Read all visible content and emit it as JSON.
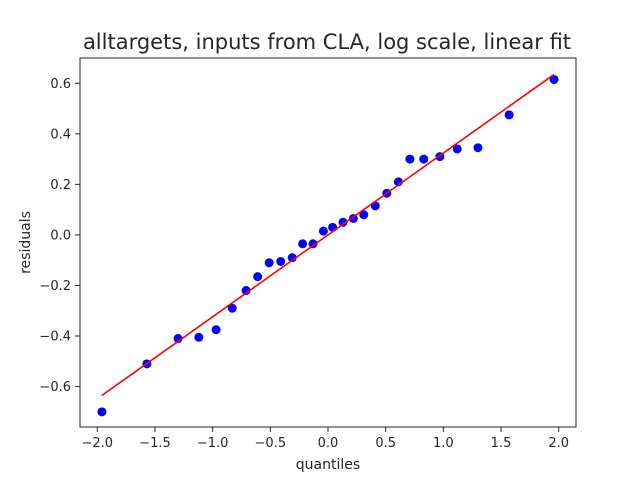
{
  "chart_data": {
    "type": "scatter",
    "title": "alltargets, inputs from CLA, log scale, linear fit",
    "xlabel": "quantiles",
    "ylabel": "residuals",
    "xlim": [
      -2.15,
      2.15
    ],
    "ylim": [
      -0.76,
      0.7
    ],
    "xticks": [
      -2.0,
      -1.5,
      -1.0,
      -0.5,
      0.0,
      0.5,
      1.0,
      1.5,
      2.0
    ],
    "xtick_labels": [
      "−2.0",
      "−1.5",
      "−1.0",
      "−0.5",
      "0.0",
      "0.5",
      "1.0",
      "1.5",
      "2.0"
    ],
    "yticks": [
      -0.6,
      -0.4,
      -0.2,
      0.0,
      0.2,
      0.4,
      0.6
    ],
    "ytick_labels": [
      "−0.6",
      "−0.4",
      "−0.2",
      "0.0",
      "0.2",
      "0.4",
      "0.6"
    ],
    "grid": false,
    "colors": {
      "points": "#0000ff",
      "fit_line": "#ff0000",
      "frame": "#262626"
    },
    "points": {
      "x": [
        -1.96,
        -1.57,
        -1.3,
        -1.12,
        -0.97,
        -0.83,
        -0.71,
        -0.61,
        -0.51,
        -0.41,
        -0.31,
        -0.22,
        -0.13,
        -0.04,
        0.04,
        0.13,
        0.22,
        0.31,
        0.41,
        0.51,
        0.61,
        0.71,
        0.83,
        0.97,
        1.12,
        1.3,
        1.57,
        1.96
      ],
      "y": [
        -0.7,
        -0.51,
        -0.41,
        -0.405,
        -0.375,
        -0.29,
        -0.22,
        -0.165,
        -0.11,
        -0.105,
        -0.09,
        -0.035,
        -0.035,
        0.015,
        0.03,
        0.05,
        0.065,
        0.08,
        0.115,
        0.165,
        0.21,
        0.3,
        0.3,
        0.31,
        0.34,
        0.345,
        0.475,
        0.615
      ]
    },
    "fit_line": {
      "x": [
        -1.96,
        1.96
      ],
      "y": [
        -0.635,
        0.635
      ]
    }
  }
}
